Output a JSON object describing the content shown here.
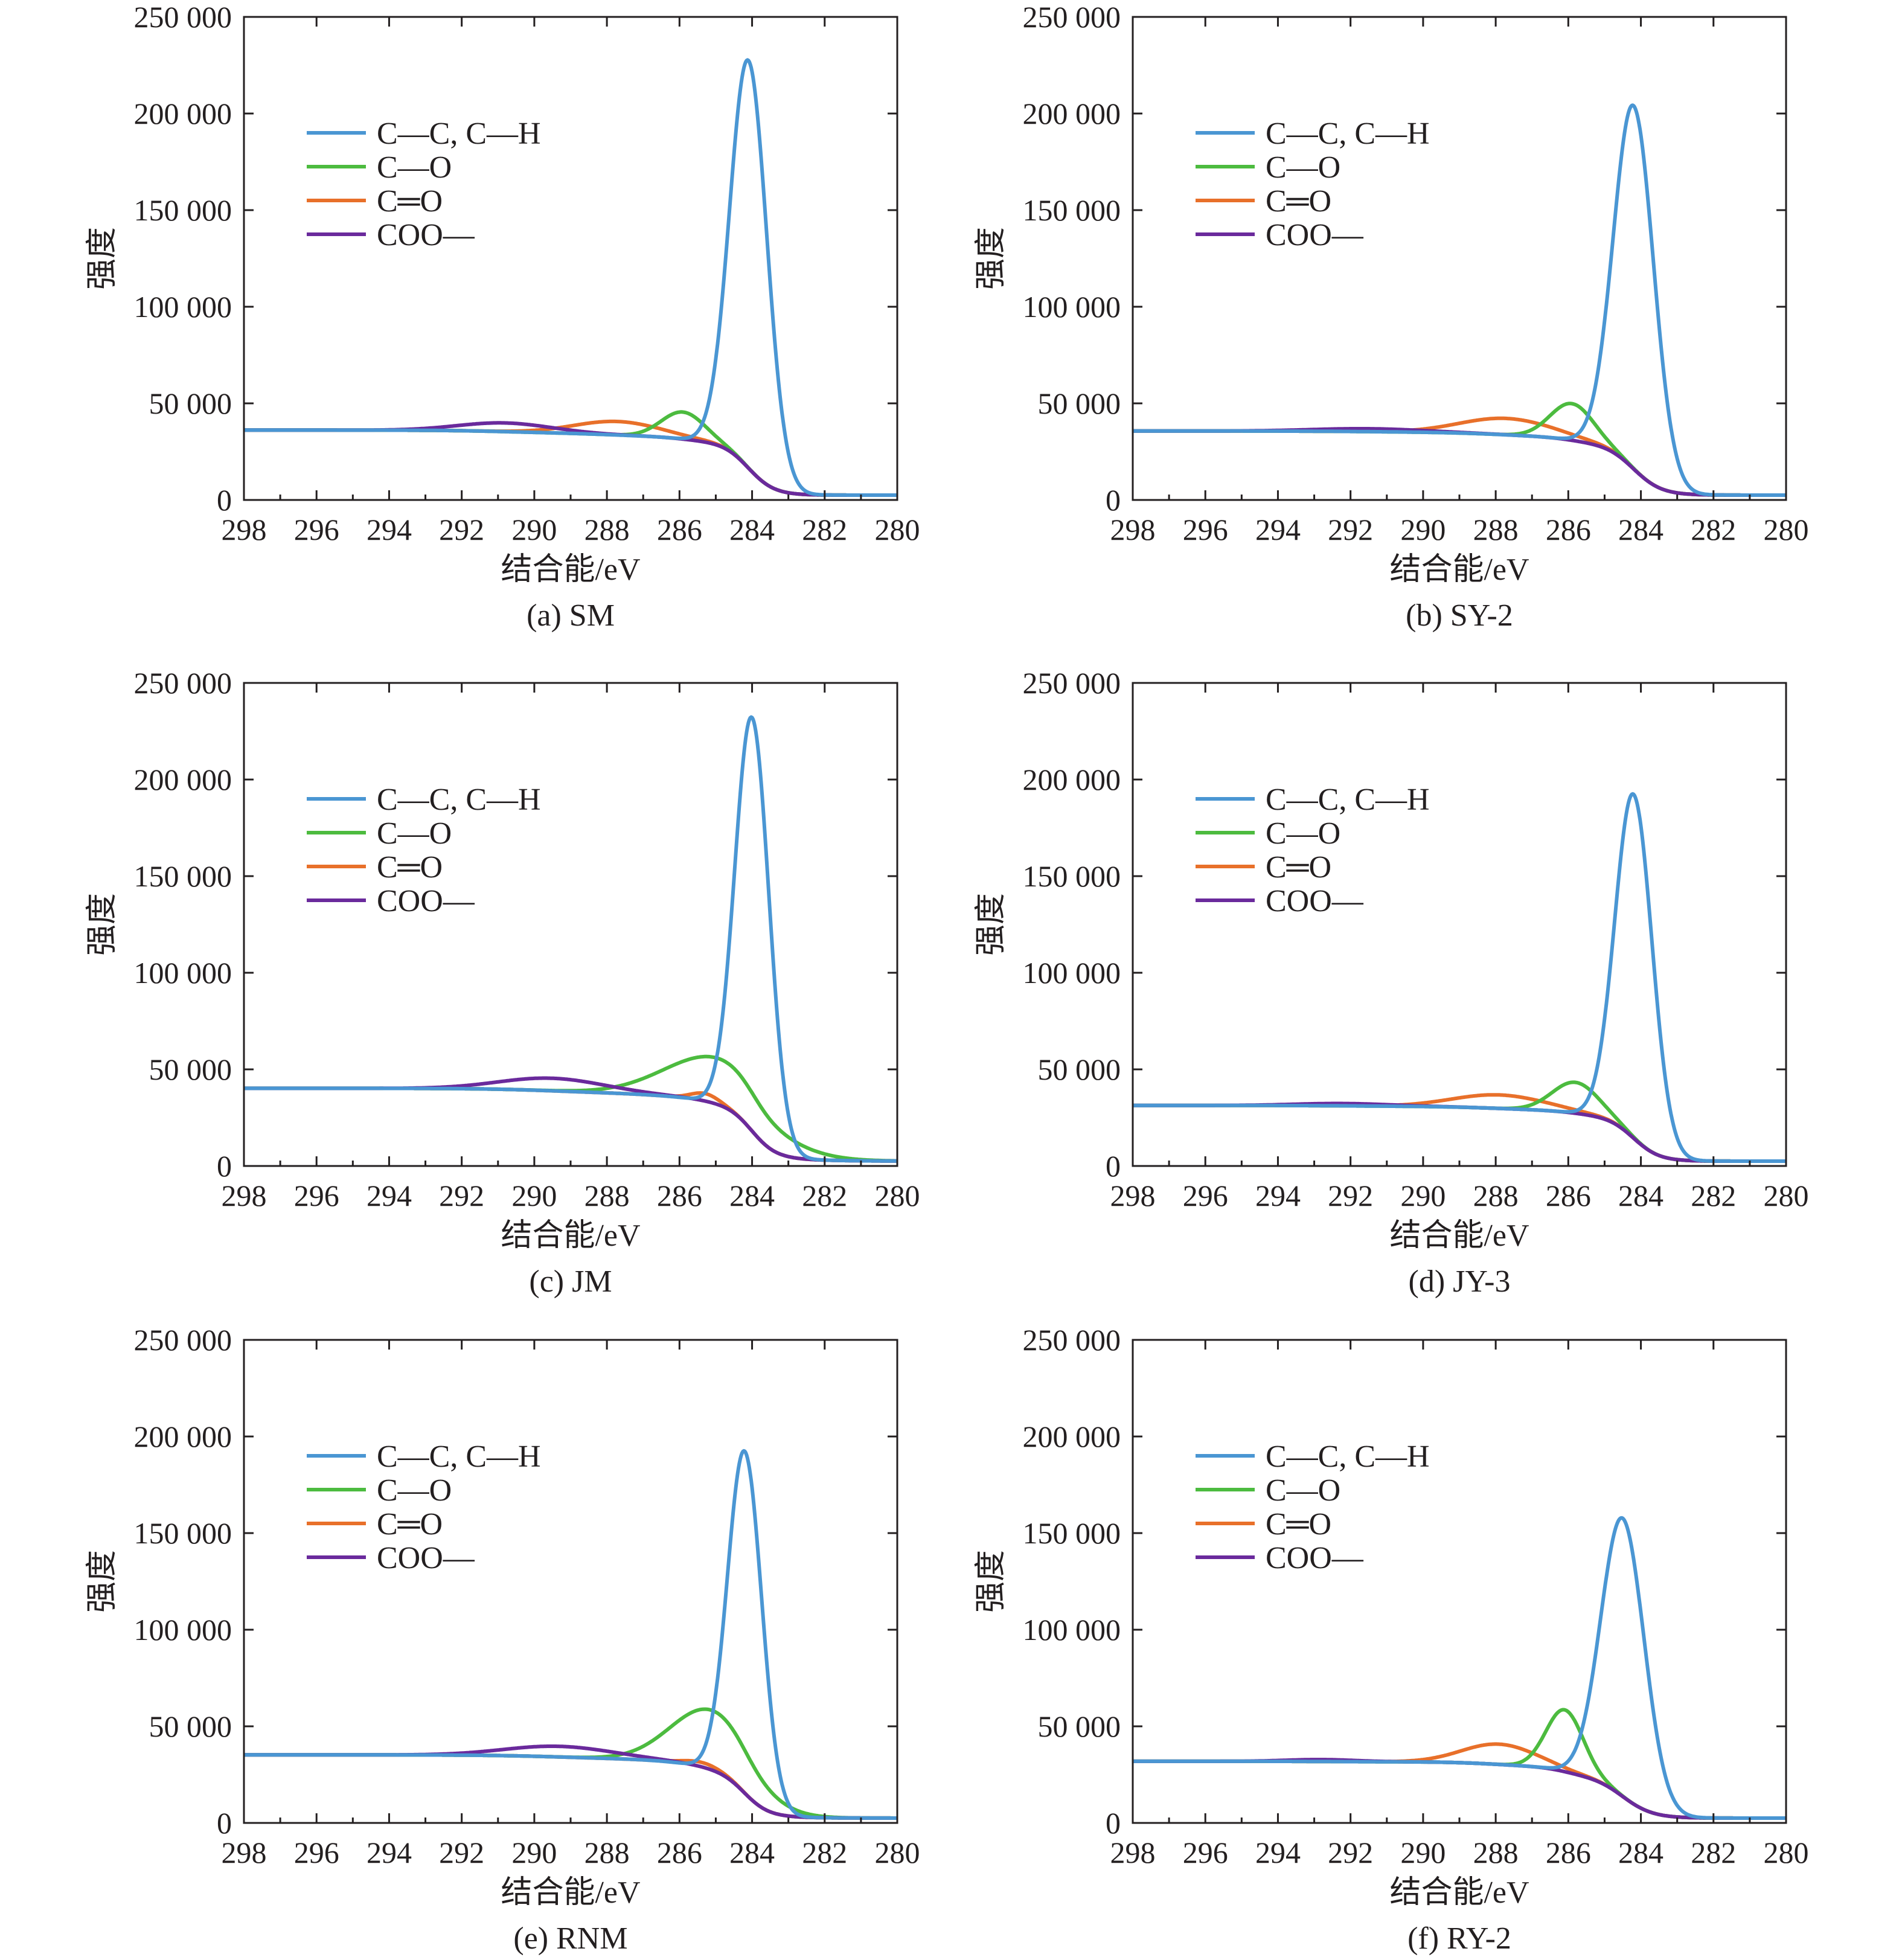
{
  "colors": {
    "cc_ch": "#4a96d3",
    "c_o": "#4cbb3f",
    "c_eq_o": "#e8702a",
    "coo": "#6a2a9c",
    "axis": "#231f20"
  },
  "chart_data": [
    {
      "type": "line",
      "caption": "(a) SM",
      "xlabel": "结合能/eV",
      "ylabel": "强度",
      "xlim": [
        298,
        280
      ],
      "ylim": [
        0,
        250000
      ],
      "x_ticks": [
        "298",
        "296",
        "294",
        "292",
        "290",
        "288",
        "286",
        "284",
        "282",
        "280"
      ],
      "y_ticks": [
        "0",
        "50 000",
        "100 000",
        "150 000",
        "200 000",
        "250 000"
      ],
      "legend_position": "top-left",
      "series": [
        {
          "name": "C—C, C—H",
          "color_key": "cc_ch",
          "peak_center": 284.1,
          "peak_height": 211000,
          "fwhm": 1.2
        },
        {
          "name": "C—O",
          "color_key": "c_o",
          "peak_center": 285.9,
          "peak_height": 14000,
          "fwhm": 1.4
        },
        {
          "name": "C═O",
          "color_key": "c_eq_o",
          "peak_center": 287.7,
          "peak_height": 7000,
          "fwhm": 2.8
        },
        {
          "name": "COO—",
          "color_key": "coo",
          "peak_center": 290.8,
          "peak_height": 4500,
          "fwhm": 3.0
        }
      ]
    },
    {
      "type": "line",
      "caption": "(b) SY-2",
      "xlabel": "结合能/eV",
      "ylabel": "强度",
      "xlim": [
        298,
        280
      ],
      "ylim": [
        0,
        250000
      ],
      "x_ticks": [
        "298",
        "296",
        "294",
        "292",
        "290",
        "288",
        "286",
        "284",
        "282",
        "280"
      ],
      "y_ticks": [
        "0",
        "50 000",
        "100 000",
        "150 000",
        "200 000",
        "250 000"
      ],
      "legend_position": "top-left",
      "series": [
        {
          "name": "C—C, C—H",
          "color_key": "cc_ch",
          "peak_center": 284.2,
          "peak_height": 188000,
          "fwhm": 1.3
        },
        {
          "name": "C—O",
          "color_key": "c_o",
          "peak_center": 285.9,
          "peak_height": 19000,
          "fwhm": 1.4
        },
        {
          "name": "C═O",
          "color_key": "c_eq_o",
          "peak_center": 287.7,
          "peak_height": 8500,
          "fwhm": 3.0
        },
        {
          "name": "COO—",
          "color_key": "coo",
          "peak_center": 291.5,
          "peak_height": 1500,
          "fwhm": 3.5
        }
      ]
    },
    {
      "type": "line",
      "caption": "(c) JM",
      "xlabel": "结合能/eV",
      "ylabel": "强度",
      "xlim": [
        298,
        280
      ],
      "ylim": [
        0,
        250000
      ],
      "x_ticks": [
        "298",
        "296",
        "294",
        "292",
        "290",
        "288",
        "286",
        "284",
        "282",
        "280"
      ],
      "y_ticks": [
        "0",
        "50 000",
        "100 000",
        "150 000",
        "200 000",
        "250 000"
      ],
      "legend_position": "top-left",
      "series": [
        {
          "name": "C—C, C—H",
          "color_key": "cc_ch",
          "peak_center": 284.0,
          "peak_height": 214000,
          "fwhm": 1.1
        },
        {
          "name": "C—O",
          "color_key": "c_o",
          "peak_center": 284.9,
          "peak_height": 24000,
          "fwhm": 3.4
        },
        {
          "name": "C═O",
          "color_key": "c_eq_o",
          "peak_center": 285.3,
          "peak_height": 4000,
          "fwhm": 0.9
        },
        {
          "name": "COO—",
          "color_key": "coo",
          "peak_center": 289.5,
          "peak_height": 6500,
          "fwhm": 3.4
        }
      ]
    },
    {
      "type": "line",
      "caption": "(d) JY-3",
      "xlabel": "结合能/eV",
      "ylabel": "强度",
      "xlim": [
        298,
        280
      ],
      "ylim": [
        0,
        250000
      ],
      "x_ticks": [
        "298",
        "296",
        "294",
        "292",
        "290",
        "288",
        "286",
        "284",
        "282",
        "280"
      ],
      "y_ticks": [
        "0",
        "50 000",
        "100 000",
        "150 000",
        "200 000",
        "250 000"
      ],
      "legend_position": "top-left",
      "series": [
        {
          "name": "C—C, C—H",
          "color_key": "cc_ch",
          "peak_center": 284.2,
          "peak_height": 178000,
          "fwhm": 1.2
        },
        {
          "name": "C—O",
          "color_key": "c_o",
          "peak_center": 285.8,
          "peak_height": 16000,
          "fwhm": 1.5
        },
        {
          "name": "C═O",
          "color_key": "c_eq_o",
          "peak_center": 287.9,
          "peak_height": 7000,
          "fwhm": 3.0
        },
        {
          "name": "COO—",
          "color_key": "coo",
          "peak_center": 292.2,
          "peak_height": 1200,
          "fwhm": 3.0
        }
      ]
    },
    {
      "type": "line",
      "caption": "(e) RNM",
      "xlabel": "结合能/eV",
      "ylabel": "强度",
      "xlim": [
        298,
        280
      ],
      "ylim": [
        0,
        250000
      ],
      "x_ticks": [
        "298",
        "296",
        "294",
        "292",
        "290",
        "288",
        "286",
        "284",
        "282",
        "280"
      ],
      "y_ticks": [
        "0",
        "50 000",
        "100 000",
        "150 000",
        "200 000",
        "250 000"
      ],
      "legend_position": "top-left",
      "series": [
        {
          "name": "C—C, C—H",
          "color_key": "cc_ch",
          "peak_center": 284.2,
          "peak_height": 177000,
          "fwhm": 1.1
        },
        {
          "name": "C—O",
          "color_key": "c_o",
          "peak_center": 285.1,
          "peak_height": 31000,
          "fwhm": 2.6
        },
        {
          "name": "C═O",
          "color_key": "c_eq_o",
          "peak_center": 285.4,
          "peak_height": 2500,
          "fwhm": 1.2
        },
        {
          "name": "COO—",
          "color_key": "coo",
          "peak_center": 289.3,
          "peak_height": 5500,
          "fwhm": 3.5
        }
      ]
    },
    {
      "type": "line",
      "caption": "(f) RY-2",
      "xlabel": "结合能/eV",
      "ylabel": "强度",
      "xlim": [
        298,
        280
      ],
      "ylim": [
        0,
        250000
      ],
      "x_ticks": [
        "298",
        "296",
        "294",
        "292",
        "290",
        "288",
        "286",
        "284",
        "282",
        "280"
      ],
      "y_ticks": [
        "0",
        "50 000",
        "100 000",
        "150 000",
        "200 000",
        "250 000"
      ],
      "legend_position": "top-left",
      "series": [
        {
          "name": "C—C, C—H",
          "color_key": "cc_ch",
          "peak_center": 284.5,
          "peak_height": 144000,
          "fwhm": 1.4
        },
        {
          "name": "C—O",
          "color_key": "c_o",
          "peak_center": 286.1,
          "peak_height": 32000,
          "fwhm": 1.2
        },
        {
          "name": "C═O",
          "color_key": "c_eq_o",
          "peak_center": 287.9,
          "peak_height": 10500,
          "fwhm": 2.4
        },
        {
          "name": "COO—",
          "color_key": "coo",
          "peak_center": 292.8,
          "peak_height": 1000,
          "fwhm": 2.2
        }
      ]
    }
  ]
}
